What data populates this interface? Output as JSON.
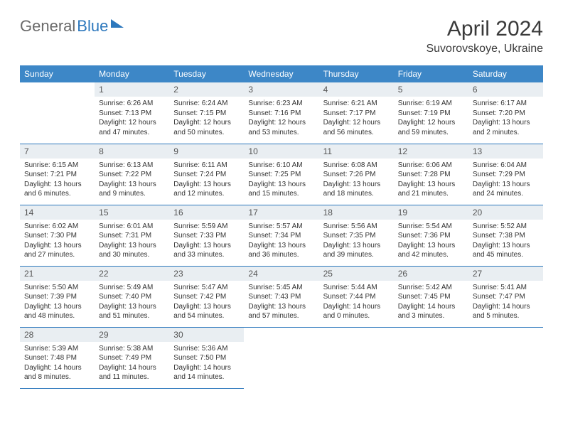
{
  "brand": {
    "part1": "General",
    "part2": "Blue"
  },
  "title": "April 2024",
  "location": "Suvorovskoye, Ukraine",
  "colors": {
    "header_bg": "#3d87c7",
    "header_text": "#ffffff",
    "daynum_bg": "#e9eef2",
    "border": "#2d78bd",
    "text": "#333333",
    "title_text": "#3a3a3a"
  },
  "weekdays": [
    "Sunday",
    "Monday",
    "Tuesday",
    "Wednesday",
    "Thursday",
    "Friday",
    "Saturday"
  ],
  "weeks": [
    [
      null,
      {
        "n": "1",
        "sr": "Sunrise: 6:26 AM",
        "ss": "Sunset: 7:13 PM",
        "d1": "Daylight: 12 hours",
        "d2": "and 47 minutes."
      },
      {
        "n": "2",
        "sr": "Sunrise: 6:24 AM",
        "ss": "Sunset: 7:15 PM",
        "d1": "Daylight: 12 hours",
        "d2": "and 50 minutes."
      },
      {
        "n": "3",
        "sr": "Sunrise: 6:23 AM",
        "ss": "Sunset: 7:16 PM",
        "d1": "Daylight: 12 hours",
        "d2": "and 53 minutes."
      },
      {
        "n": "4",
        "sr": "Sunrise: 6:21 AM",
        "ss": "Sunset: 7:17 PM",
        "d1": "Daylight: 12 hours",
        "d2": "and 56 minutes."
      },
      {
        "n": "5",
        "sr": "Sunrise: 6:19 AM",
        "ss": "Sunset: 7:19 PM",
        "d1": "Daylight: 12 hours",
        "d2": "and 59 minutes."
      },
      {
        "n": "6",
        "sr": "Sunrise: 6:17 AM",
        "ss": "Sunset: 7:20 PM",
        "d1": "Daylight: 13 hours",
        "d2": "and 2 minutes."
      }
    ],
    [
      {
        "n": "7",
        "sr": "Sunrise: 6:15 AM",
        "ss": "Sunset: 7:21 PM",
        "d1": "Daylight: 13 hours",
        "d2": "and 6 minutes."
      },
      {
        "n": "8",
        "sr": "Sunrise: 6:13 AM",
        "ss": "Sunset: 7:22 PM",
        "d1": "Daylight: 13 hours",
        "d2": "and 9 minutes."
      },
      {
        "n": "9",
        "sr": "Sunrise: 6:11 AM",
        "ss": "Sunset: 7:24 PM",
        "d1": "Daylight: 13 hours",
        "d2": "and 12 minutes."
      },
      {
        "n": "10",
        "sr": "Sunrise: 6:10 AM",
        "ss": "Sunset: 7:25 PM",
        "d1": "Daylight: 13 hours",
        "d2": "and 15 minutes."
      },
      {
        "n": "11",
        "sr": "Sunrise: 6:08 AM",
        "ss": "Sunset: 7:26 PM",
        "d1": "Daylight: 13 hours",
        "d2": "and 18 minutes."
      },
      {
        "n": "12",
        "sr": "Sunrise: 6:06 AM",
        "ss": "Sunset: 7:28 PM",
        "d1": "Daylight: 13 hours",
        "d2": "and 21 minutes."
      },
      {
        "n": "13",
        "sr": "Sunrise: 6:04 AM",
        "ss": "Sunset: 7:29 PM",
        "d1": "Daylight: 13 hours",
        "d2": "and 24 minutes."
      }
    ],
    [
      {
        "n": "14",
        "sr": "Sunrise: 6:02 AM",
        "ss": "Sunset: 7:30 PM",
        "d1": "Daylight: 13 hours",
        "d2": "and 27 minutes."
      },
      {
        "n": "15",
        "sr": "Sunrise: 6:01 AM",
        "ss": "Sunset: 7:31 PM",
        "d1": "Daylight: 13 hours",
        "d2": "and 30 minutes."
      },
      {
        "n": "16",
        "sr": "Sunrise: 5:59 AM",
        "ss": "Sunset: 7:33 PM",
        "d1": "Daylight: 13 hours",
        "d2": "and 33 minutes."
      },
      {
        "n": "17",
        "sr": "Sunrise: 5:57 AM",
        "ss": "Sunset: 7:34 PM",
        "d1": "Daylight: 13 hours",
        "d2": "and 36 minutes."
      },
      {
        "n": "18",
        "sr": "Sunrise: 5:56 AM",
        "ss": "Sunset: 7:35 PM",
        "d1": "Daylight: 13 hours",
        "d2": "and 39 minutes."
      },
      {
        "n": "19",
        "sr": "Sunrise: 5:54 AM",
        "ss": "Sunset: 7:36 PM",
        "d1": "Daylight: 13 hours",
        "d2": "and 42 minutes."
      },
      {
        "n": "20",
        "sr": "Sunrise: 5:52 AM",
        "ss": "Sunset: 7:38 PM",
        "d1": "Daylight: 13 hours",
        "d2": "and 45 minutes."
      }
    ],
    [
      {
        "n": "21",
        "sr": "Sunrise: 5:50 AM",
        "ss": "Sunset: 7:39 PM",
        "d1": "Daylight: 13 hours",
        "d2": "and 48 minutes."
      },
      {
        "n": "22",
        "sr": "Sunrise: 5:49 AM",
        "ss": "Sunset: 7:40 PM",
        "d1": "Daylight: 13 hours",
        "d2": "and 51 minutes."
      },
      {
        "n": "23",
        "sr": "Sunrise: 5:47 AM",
        "ss": "Sunset: 7:42 PM",
        "d1": "Daylight: 13 hours",
        "d2": "and 54 minutes."
      },
      {
        "n": "24",
        "sr": "Sunrise: 5:45 AM",
        "ss": "Sunset: 7:43 PM",
        "d1": "Daylight: 13 hours",
        "d2": "and 57 minutes."
      },
      {
        "n": "25",
        "sr": "Sunrise: 5:44 AM",
        "ss": "Sunset: 7:44 PM",
        "d1": "Daylight: 14 hours",
        "d2": "and 0 minutes."
      },
      {
        "n": "26",
        "sr": "Sunrise: 5:42 AM",
        "ss": "Sunset: 7:45 PM",
        "d1": "Daylight: 14 hours",
        "d2": "and 3 minutes."
      },
      {
        "n": "27",
        "sr": "Sunrise: 5:41 AM",
        "ss": "Sunset: 7:47 PM",
        "d1": "Daylight: 14 hours",
        "d2": "and 5 minutes."
      }
    ],
    [
      {
        "n": "28",
        "sr": "Sunrise: 5:39 AM",
        "ss": "Sunset: 7:48 PM",
        "d1": "Daylight: 14 hours",
        "d2": "and 8 minutes."
      },
      {
        "n": "29",
        "sr": "Sunrise: 5:38 AM",
        "ss": "Sunset: 7:49 PM",
        "d1": "Daylight: 14 hours",
        "d2": "and 11 minutes."
      },
      {
        "n": "30",
        "sr": "Sunrise: 5:36 AM",
        "ss": "Sunset: 7:50 PM",
        "d1": "Daylight: 14 hours",
        "d2": "and 14 minutes."
      },
      null,
      null,
      null,
      null
    ]
  ]
}
